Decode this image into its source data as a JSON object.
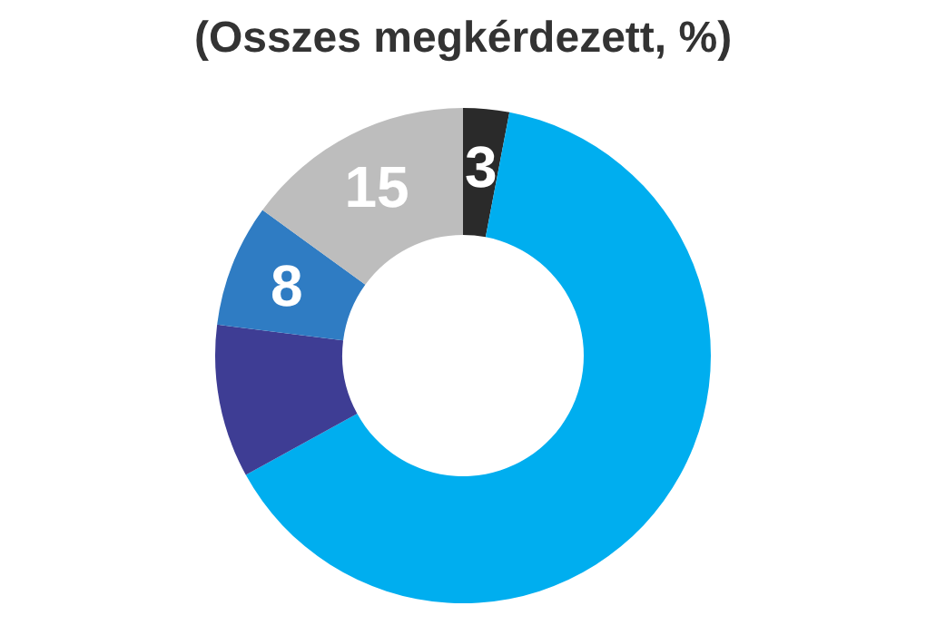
{
  "chart_data": {
    "type": "donut",
    "title": "(Osszes megkérdezett, %)",
    "categories": [
      null,
      null,
      null,
      null,
      null
    ],
    "values": [
      3,
      64,
      10,
      8,
      15
    ],
    "colors": [
      "#2a2a2a",
      "#00aeef",
      "#3e3d94",
      "#2f7cc3",
      "#bdbdbd"
    ],
    "value_labels": [
      "3",
      null,
      null,
      "8",
      "15"
    ]
  }
}
